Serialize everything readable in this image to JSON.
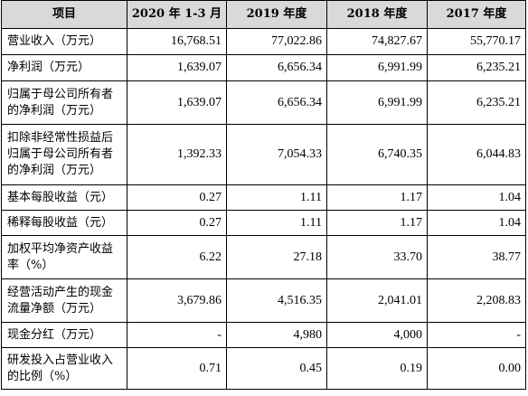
{
  "table": {
    "headers": [
      "项目",
      "2020 年 1-3 月",
      "2019 年度",
      "2018 年度",
      "2017 年度"
    ],
    "rows": [
      {
        "label": "营业收入（万元）",
        "values": [
          "16,768.51",
          "77,022.86",
          "74,827.67",
          "55,770.17"
        ]
      },
      {
        "label": "净利润（万元）",
        "values": [
          "1,639.07",
          "6,656.34",
          "6,991.99",
          "6,235.21"
        ]
      },
      {
        "label": "归属于母公司所有者的净利润（万元）",
        "values": [
          "1,639.07",
          "6,656.34",
          "6,991.99",
          "6,235.21"
        ]
      },
      {
        "label": "扣除非经常性损益后归属于母公司所有者的净利润（万元）",
        "values": [
          "1,392.33",
          "7,054.33",
          "6,740.35",
          "6,044.83"
        ]
      },
      {
        "label": "基本每股收益（元）",
        "values": [
          "0.27",
          "1.11",
          "1.17",
          "1.04"
        ]
      },
      {
        "label": "稀释每股收益（元）",
        "values": [
          "0.27",
          "1.11",
          "1.17",
          "1.04"
        ]
      },
      {
        "label": "加权平均净资产收益率（%）",
        "values": [
          "6.22",
          "27.18",
          "33.70",
          "38.77"
        ]
      },
      {
        "label": "经营活动产生的现金流量净额（万元）",
        "values": [
          "3,679.86",
          "4,516.35",
          "2,041.01",
          "2,208.83"
        ]
      },
      {
        "label": "现金分红（万元）",
        "values": [
          "-",
          "4,980",
          "4,000",
          "-"
        ]
      },
      {
        "label": "研发投入占营业收入的比例（%）",
        "values": [
          "0.71",
          "0.45",
          "0.19",
          "0.00"
        ]
      }
    ]
  }
}
